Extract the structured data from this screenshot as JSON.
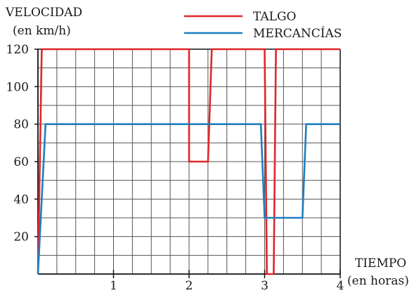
{
  "chart_data": {
    "type": "line",
    "ylabel_line1": "VELOCIDAD",
    "ylabel_line2": "(en km/h)",
    "xlabel_line1": "TIEMPO",
    "xlabel_line2": "(en horas)",
    "xlim": [
      0,
      4
    ],
    "ylim": [
      0,
      120
    ],
    "x_ticks": [
      1,
      2,
      3,
      4
    ],
    "y_ticks": [
      20,
      40,
      60,
      80,
      100,
      120
    ],
    "grid": true,
    "legend_position": "top-right",
    "series": [
      {
        "name": "TALGO",
        "color": "#e0262b",
        "points": [
          [
            0,
            0
          ],
          [
            0.05,
            120
          ],
          [
            2.0,
            120
          ],
          [
            2.0,
            60
          ],
          [
            2.25,
            60
          ],
          [
            2.3,
            120
          ],
          [
            3.0,
            120
          ],
          [
            3.03,
            0
          ],
          [
            3.12,
            0
          ],
          [
            3.15,
            120
          ],
          [
            4.0,
            120
          ]
        ]
      },
      {
        "name": "MERCANCÍAS",
        "color": "#1d7fbf",
        "points": [
          [
            0,
            0
          ],
          [
            0.1,
            80
          ],
          [
            2.95,
            80
          ],
          [
            3.0,
            30
          ],
          [
            3.5,
            30
          ],
          [
            3.55,
            80
          ],
          [
            4.0,
            80
          ]
        ]
      }
    ]
  }
}
